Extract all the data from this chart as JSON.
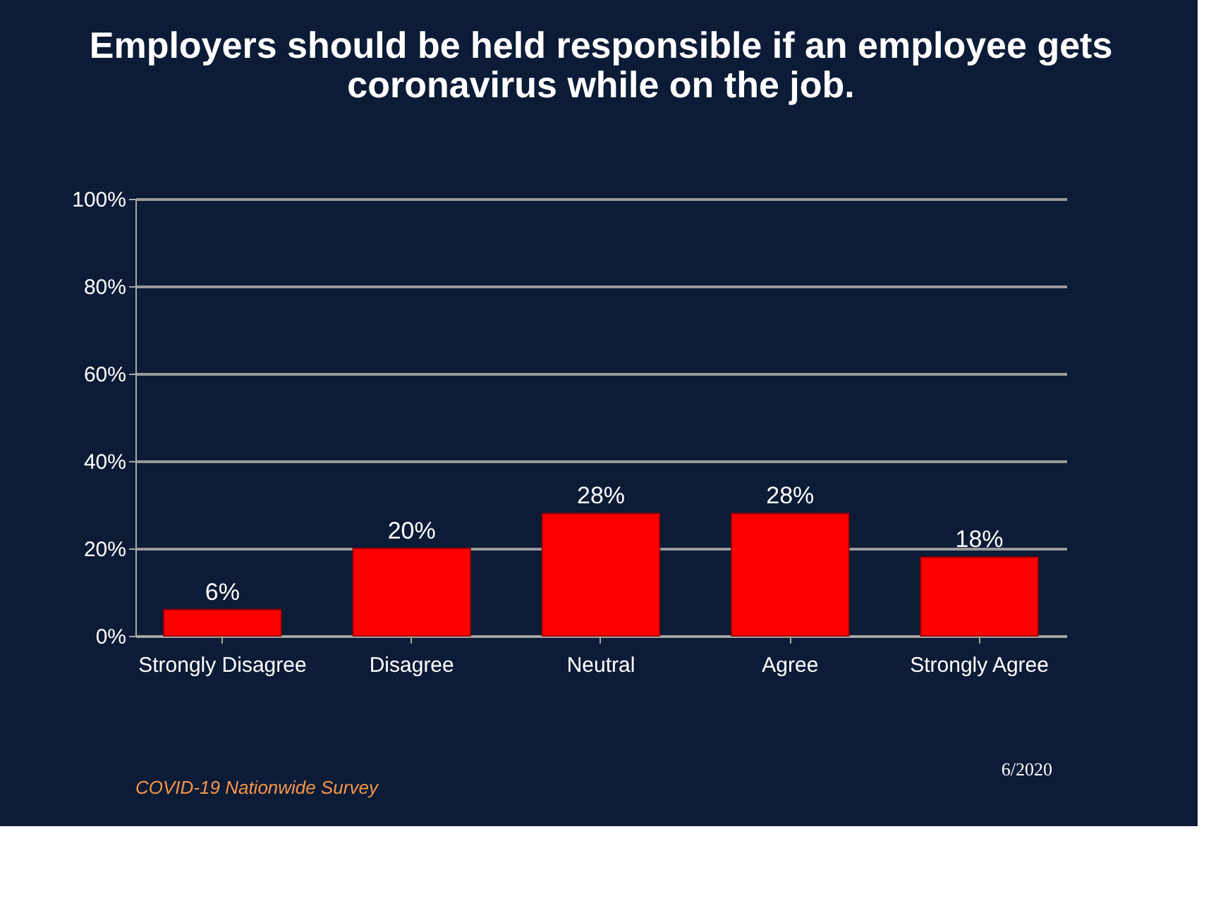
{
  "chart_data": {
    "type": "bar",
    "title": "Employers should be held responsible if an employee gets coronavirus while on the job.",
    "categories": [
      "Strongly Disagree",
      "Disagree",
      "Neutral",
      "Agree",
      "Strongly Agree"
    ],
    "values": [
      6,
      20,
      28,
      28,
      18
    ],
    "color": "#ff0000",
    "ylim": [
      0,
      100
    ],
    "yticks": [
      {
        "value": 0,
        "label": "0%"
      },
      {
        "value": 20,
        "label": "20%"
      },
      {
        "value": 40,
        "label": "40%"
      },
      {
        "value": 60,
        "label": "60%"
      },
      {
        "value": 80,
        "label": "80%"
      },
      {
        "value": 100,
        "label": "100%"
      }
    ],
    "value_labels": [
      "6%",
      "20%",
      "28%",
      "28%",
      "18%"
    ],
    "grid": "y",
    "annotations": [
      "COVID-19 Nationwide Survey",
      "6/2020"
    ]
  }
}
